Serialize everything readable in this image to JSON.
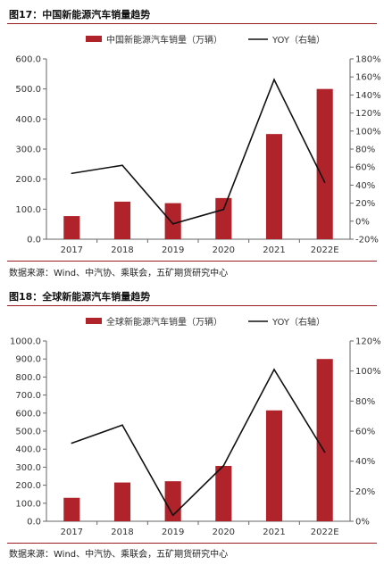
{
  "colors": {
    "bar": "#b0232a",
    "line": "#111111",
    "axis": "#666666",
    "rule": "#9a1c22"
  },
  "figures": [
    {
      "title": "图17：中国新能源汽车销量趋势",
      "source": "数据来源：Wind、中汽协、乘联会，五矿期货研究中心",
      "chart_data": {
        "type": "bar",
        "categories": [
          "2017",
          "2018",
          "2019",
          "2020",
          "2021",
          "2022E"
        ],
        "series": [
          {
            "name": "中国新能源汽车销量（万辆）",
            "type": "bar",
            "axis": "left",
            "values": [
              77,
              125,
              120,
              137,
              350,
              500
            ]
          },
          {
            "name": "YOY（右轴）",
            "type": "line",
            "axis": "right",
            "values": [
              53,
              62,
              -3,
              13,
              157,
              43
            ]
          }
        ],
        "left_axis": {
          "min": 0,
          "max": 600,
          "step": 100,
          "ticks": [
            "0.0",
            "100.0",
            "200.0",
            "300.0",
            "400.0",
            "500.0",
            "600.0"
          ]
        },
        "right_axis": {
          "min": -20,
          "max": 180,
          "step": 20,
          "ticks": [
            "-20%",
            "0%",
            "20%",
            "40%",
            "60%",
            "80%",
            "100%",
            "120%",
            "140%",
            "160%",
            "180%"
          ]
        },
        "legend_position": "top",
        "grid": false
      }
    },
    {
      "title": "图18：全球新能源汽车销量趋势",
      "source": "数据来源：Wind、中汽协、乘联会，五矿期货研究中心",
      "chart_data": {
        "type": "bar",
        "categories": [
          "2017",
          "2018",
          "2019",
          "2020",
          "2021",
          "2022E"
        ],
        "series": [
          {
            "name": "全球新能源汽车销量（万辆）",
            "type": "bar",
            "axis": "left",
            "values": [
              130,
              215,
              222,
              307,
              615,
              900
            ]
          },
          {
            "name": "YOY（右轴）",
            "type": "line",
            "axis": "right",
            "values": [
              52,
              64,
              4,
              37,
              101,
              46
            ]
          }
        ],
        "left_axis": {
          "min": 0,
          "max": 1000,
          "step": 100,
          "ticks": [
            "0.0",
            "100.0",
            "200.0",
            "300.0",
            "400.0",
            "500.0",
            "600.0",
            "700.0",
            "800.0",
            "900.0",
            "1000.0"
          ]
        },
        "right_axis": {
          "min": 0,
          "max": 120,
          "step": 20,
          "ticks": [
            "0%",
            "20%",
            "40%",
            "60%",
            "80%",
            "100%",
            "120%"
          ]
        },
        "legend_position": "top",
        "grid": false
      }
    }
  ]
}
